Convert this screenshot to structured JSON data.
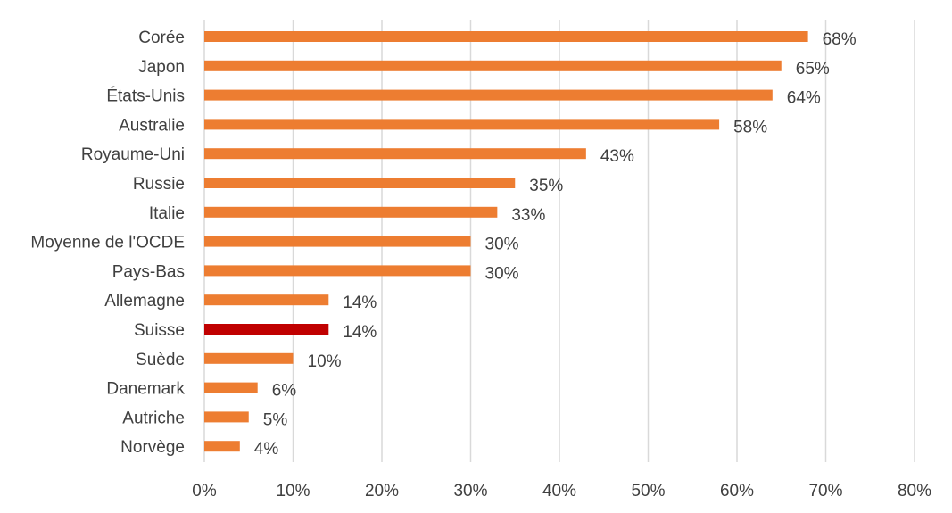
{
  "chart_data": {
    "type": "bar",
    "orientation": "horizontal",
    "categories": [
      "Corée",
      "Japon",
      "États-Unis",
      "Australie",
      "Royaume-Uni",
      "Russie",
      "Italie",
      "Moyenne de l'OCDE",
      "Pays-Bas",
      "Allemagne",
      "Suisse",
      "Suède",
      "Danemark",
      "Autriche",
      "Norvège"
    ],
    "values": [
      68,
      65,
      64,
      58,
      43,
      35,
      33,
      30,
      30,
      14,
      14,
      10,
      6,
      5,
      4
    ],
    "value_labels": [
      "68%",
      "65%",
      "64%",
      "58%",
      "43%",
      "35%",
      "33%",
      "30%",
      "30%",
      "14%",
      "14%",
      "10%",
      "6%",
      "5%",
      "4%"
    ],
    "x_ticks": [
      "0%",
      "10%",
      "20%",
      "30%",
      "40%",
      "50%",
      "60%",
      "70%",
      "80%"
    ],
    "xlim": [
      0,
      80
    ],
    "grid": "vertical",
    "highlight_category": "Suisse",
    "colors": {
      "bar": "#ED7D31",
      "highlight": "#C00000"
    },
    "title": "",
    "xlabel": "",
    "ylabel": ""
  }
}
